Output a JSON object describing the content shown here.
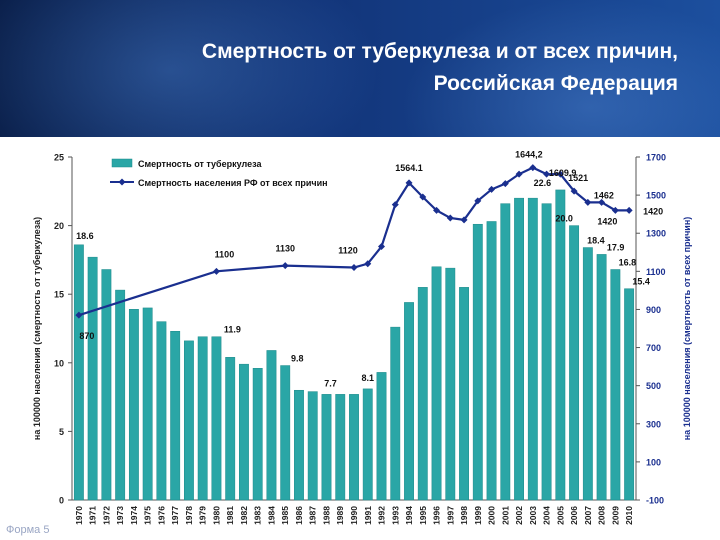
{
  "header": {
    "title_line1": "Смертность от туберкулеза и от всех причин,",
    "title_line2": "Российская Федерация"
  },
  "footer": {
    "label": "Форма 5"
  },
  "colors": {
    "banner": "#12357a",
    "bars": "#2aa6a6",
    "line": "#1a2f8f",
    "text": "#1a1a1a"
  },
  "chart_data": {
    "type": "bar",
    "categories": [
      "1970",
      "1971",
      "1972",
      "1973",
      "1974",
      "1975",
      "1976",
      "1977",
      "1978",
      "1979",
      "1980",
      "1981",
      "1982",
      "1983",
      "1984",
      "1985",
      "1986",
      "1987",
      "1988",
      "1989",
      "1990",
      "1991",
      "1992",
      "1993",
      "1994",
      "1995",
      "1996",
      "1997",
      "1998",
      "1999",
      "2000",
      "2001",
      "2002",
      "2003",
      "2004",
      "2005",
      "2006",
      "2007",
      "2008",
      "2009",
      "2010"
    ],
    "series": [
      {
        "name": "Смертность от туберкулеза",
        "type": "bar",
        "axis": "left",
        "values": [
          18.6,
          17.7,
          16.8,
          15.3,
          13.9,
          14.0,
          13.0,
          12.3,
          11.6,
          11.9,
          11.9,
          10.4,
          9.9,
          9.6,
          10.9,
          9.8,
          8.0,
          7.9,
          7.7,
          7.7,
          7.7,
          8.1,
          9.3,
          12.6,
          14.4,
          15.5,
          17.0,
          16.9,
          15.5,
          20.1,
          20.3,
          21.6,
          22.0,
          22.0,
          21.6,
          22.6,
          20.0,
          18.4,
          17.9,
          16.8,
          15.4
        ],
        "labels": [
          {
            "category": "1970",
            "text": "18.6"
          },
          {
            "category": "1980",
            "text": "11.9"
          },
          {
            "category": "1985",
            "text": "9.8"
          },
          {
            "category": "1988",
            "text": "7.7"
          },
          {
            "category": "1991",
            "text": "8.1"
          },
          {
            "category": "2005",
            "text": "22.6"
          },
          {
            "category": "2006",
            "text": "20.0"
          },
          {
            "category": "2007",
            "text": "18.4"
          },
          {
            "category": "2008",
            "text": "17.9"
          },
          {
            "category": "2009",
            "text": "16.8"
          },
          {
            "category": "2010",
            "text": "15.4"
          }
        ]
      },
      {
        "name": "Смертность населения РФ от всех причин",
        "type": "line",
        "axis": "right",
        "points": [
          {
            "x": "1970",
            "y": 870
          },
          {
            "x": "1980",
            "y": 1100
          },
          {
            "x": "1985",
            "y": 1130
          },
          {
            "x": "1990",
            "y": 1120
          },
          {
            "x": "1991",
            "y": 1140
          },
          {
            "x": "1992",
            "y": 1230
          },
          {
            "x": "1993",
            "y": 1450
          },
          {
            "x": "1994",
            "y": 1564.1
          },
          {
            "x": "1995",
            "y": 1490
          },
          {
            "x": "1996",
            "y": 1420
          },
          {
            "x": "1997",
            "y": 1380
          },
          {
            "x": "1998",
            "y": 1370
          },
          {
            "x": "1999",
            "y": 1470
          },
          {
            "x": "2000",
            "y": 1530
          },
          {
            "x": "2001",
            "y": 1560
          },
          {
            "x": "2002",
            "y": 1610
          },
          {
            "x": "2003",
            "y": 1644.2
          },
          {
            "x": "2004",
            "y": 1609.9
          },
          {
            "x": "2005",
            "y": 1610
          },
          {
            "x": "2006",
            "y": 1521
          },
          {
            "x": "2007",
            "y": 1462
          },
          {
            "x": "2008",
            "y": 1462
          },
          {
            "x": "2009",
            "y": 1420
          },
          {
            "x": "2010",
            "y": 1420
          }
        ],
        "labels": [
          {
            "x": "1970",
            "text": "870"
          },
          {
            "x": "1980",
            "text": "1100"
          },
          {
            "x": "1985",
            "text": "1130"
          },
          {
            "x": "1990",
            "text": "1120"
          },
          {
            "x": "1994",
            "text": "1564.1"
          },
          {
            "x": "2003",
            "text": "1644,2"
          },
          {
            "x": "2004",
            "text": "1609.9"
          },
          {
            "x": "2006",
            "text": "1521"
          },
          {
            "x": "2007",
            "text": "1462"
          },
          {
            "x": "2009",
            "text": "1420"
          },
          {
            "x": "2010",
            "text": "1420"
          }
        ]
      }
    ],
    "left_axis": {
      "label": "на 100000 населения (смертность от туберкулеза)",
      "ylim": [
        0,
        25
      ],
      "ticks": [
        "0",
        "5",
        "10",
        "15",
        "20",
        "25"
      ]
    },
    "right_axis": {
      "label": "на 100000 населения (смертность от всех причин)",
      "ylim": [
        -100,
        1700
      ],
      "ticks": [
        "-100",
        "100",
        "300",
        "500",
        "700",
        "900",
        "1100",
        "1300",
        "1500",
        "1700"
      ]
    },
    "legend": {
      "placement": "top-left",
      "items": [
        {
          "label": "Смертность от туберкулеза",
          "marker": "bar"
        },
        {
          "label": "Смертность населения РФ от всех причин",
          "marker": "line"
        }
      ]
    },
    "grid": false
  }
}
